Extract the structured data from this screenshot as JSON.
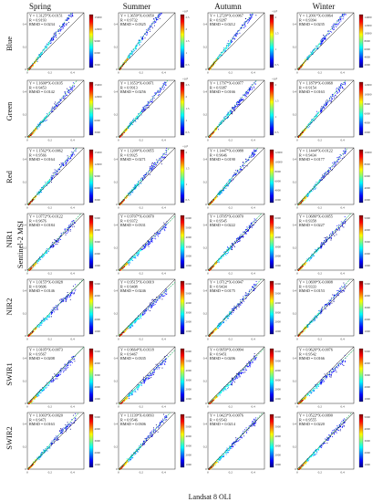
{
  "figure": {
    "seasons": [
      "Spring",
      "Summer",
      "Autumn",
      "Winter"
    ],
    "bands": [
      "Blue",
      "Green",
      "Red",
      "NIR1",
      "NIR2",
      "SWIR1",
      "SWIR2"
    ],
    "xlabel": "Landsat 8 OLI",
    "ylabel": "Sentinel-2 MSI"
  },
  "chart_data": {
    "type": "scatter",
    "axis_ticks": [
      "0",
      "0.2",
      "0.4"
    ],
    "xlim": [
      0,
      0.5
    ],
    "ylim": [
      0,
      0.5
    ],
    "density_colormap": [
      "#00007f",
      "#0000ff",
      "#007fff",
      "#00ffff",
      "#7fff7f",
      "#ffff00",
      "#ff7f00",
      "#ff0000",
      "#7f0000"
    ],
    "panels": [
      [
        {
          "equation": "Y = 1.3125*X-0.0151",
          "r": "R = 0.9193",
          "rmsd": "RMSD = 0.0234",
          "cbar_ticks": [
            "15000",
            "12000",
            "9000",
            "6000",
            "3000"
          ],
          "cbar_exp": ""
        },
        {
          "equation": "Y = 1.3659*X-0.0050",
          "r": "R = 0.9732",
          "rmsd": "RMSD = 0.0325",
          "cbar_ticks": [
            "2.5",
            "2",
            "1.5",
            "1",
            "0.5"
          ],
          "cbar_exp": "×10⁴"
        },
        {
          "equation": "Y = 1.2729*X-0.0067",
          "r": "R = 0.9287",
          "rmsd": "RMSD = 0.0212",
          "cbar_ticks": [
            "2",
            "1.5",
            "1",
            "0.5"
          ],
          "cbar_exp": "×10⁴"
        },
        {
          "equation": "Y = 1.2091*X-0.0064",
          "r": "R = 0.9394",
          "rmsd": "RMSD = 0.0235",
          "cbar_ticks": [
            "14000",
            "12000",
            "10000",
            "8000",
            "6000",
            "4000",
            "2000"
          ],
          "cbar_exp": ""
        }
      ],
      [
        {
          "equation": "Y = 1.1600*X-0.0105",
          "r": "R = 0.9453",
          "rmsd": "RMSD = 0.0142",
          "cbar_ticks": [
            "15000",
            "12000",
            "9000",
            "6000",
            "3000"
          ],
          "cbar_exp": ""
        },
        {
          "equation": "Y = 1.1653*X-0.0071",
          "r": "R = 0.9913",
          "rmsd": "RMSD = 0.0256",
          "cbar_ticks": [
            "2.5",
            "2",
            "1.5",
            "1",
            "0.5"
          ],
          "cbar_exp": "×10⁴"
        },
        {
          "equation": "Y = 1.1797*X-0.0077",
          "r": "R = 0.9387",
          "rmsd": "RMSD = 0.0166",
          "cbar_ticks": [
            "2",
            "1.5",
            "1",
            "0.5"
          ],
          "cbar_exp": "×10⁴"
        },
        {
          "equation": "Y = 1.1879*X-0.0068",
          "r": "R = 0.9154",
          "rmsd": "RMSD = 0.0163",
          "cbar_ticks": [
            "12000",
            "10000",
            "8000",
            "6000",
            "4000",
            "2000"
          ],
          "cbar_exp": ""
        }
      ],
      [
        {
          "equation": "Y = 1.1562*X-0.0062",
          "r": "R = 0.9566",
          "rmsd": "RMSD = 0.0164",
          "cbar_ticks": [
            "15000",
            "12000",
            "9000",
            "6000",
            "3000"
          ],
          "cbar_exp": ""
        },
        {
          "equation": "Y = 1.1209*X-0.0055",
          "r": "R = 0.9925",
          "rmsd": "RMSD = 0.0271",
          "cbar_ticks": [
            "2",
            "1.5",
            "1",
            "0.5"
          ],
          "cbar_exp": "×10⁴"
        },
        {
          "equation": "Y = 1.1447*X-0.0088",
          "r": "R = 0.9646",
          "rmsd": "RMSD = 0.0190",
          "cbar_ticks": [
            "12000",
            "10000",
            "8000",
            "6000",
            "4000",
            "2000"
          ],
          "cbar_exp": ""
        },
        {
          "equation": "Y = 1.1444*X-0.0122",
          "r": "R = 0.9434",
          "rmsd": "RMSD = 0.0177",
          "cbar_ticks": [
            "10000",
            "8000",
            "6000",
            "4000",
            "2000"
          ],
          "cbar_exp": ""
        }
      ],
      [
        {
          "equation": "Y = 1.0772*X-0.0122",
          "r": "R = 0.9676",
          "rmsd": "RMSD = 0.0184",
          "cbar_ticks": [
            "5000",
            "4000",
            "3000",
            "2000",
            "1000"
          ],
          "cbar_exp": ""
        },
        {
          "equation": "Y = 0.9707*X-0.0070",
          "r": "R = 0.9372",
          "rmsd": "RMSD = 0.0331",
          "cbar_ticks": [
            "6000",
            "5000",
            "4000",
            "3000",
            "2000",
            "1000"
          ],
          "cbar_exp": ""
        },
        {
          "equation": "Y = 1.0705*X-0.0070",
          "r": "R = 0.9545",
          "rmsd": "RMSD = 0.0222",
          "cbar_ticks": [
            "6000",
            "5000",
            "4000",
            "3000",
            "2000",
            "1000"
          ],
          "cbar_exp": ""
        },
        {
          "equation": "Y = 1.0686*X-0.0055",
          "r": "R = 0.9358",
          "rmsd": "RMSD = 0.0227",
          "cbar_ticks": [
            "5000",
            "4000",
            "3000",
            "2000",
            "1000"
          ],
          "cbar_exp": ""
        }
      ],
      [
        {
          "equation": "Y = 1.0155*X-0.0028",
          "r": "R = 0.9606",
          "rmsd": "RMSD = 0.0146",
          "cbar_ticks": [
            "5000",
            "4000",
            "3000",
            "2000",
            "1000"
          ],
          "cbar_exp": ""
        },
        {
          "equation": "Y = 0.9515*X-0.0019",
          "r": "R = 0.9408",
          "rmsd": "RMSD = 0.0246",
          "cbar_ticks": [
            "6000",
            "5000",
            "4000",
            "3000",
            "2000",
            "1000"
          ],
          "cbar_exp": ""
        },
        {
          "equation": "Y = 1.0712*X-0.0047",
          "r": "R = 0.9434",
          "rmsd": "RMSD = 0.0175",
          "cbar_ticks": [
            "6000",
            "5000",
            "4000",
            "3000",
            "2000",
            "1000"
          ],
          "cbar_exp": ""
        },
        {
          "equation": "Y = 1.0699*X-0.0008",
          "r": "R = 0.9333",
          "rmsd": "RMSD = 0.0153",
          "cbar_ticks": [
            "5000",
            "4000",
            "3000",
            "2000",
            "1000"
          ],
          "cbar_exp": ""
        }
      ],
      [
        {
          "equation": "Y = 1.0105*X-0.0073",
          "r": "R = 0.9567",
          "rmsd": "RMSD = 0.0208",
          "cbar_ticks": [
            "5000",
            "4000",
            "3000",
            "2000",
            "1000"
          ],
          "cbar_exp": ""
        },
        {
          "equation": "Y = 0.9664*X-0.0118",
          "r": "R = 0.9467",
          "rmsd": "RMSD = 0.0335",
          "cbar_ticks": [
            "6000",
            "5000",
            "4000",
            "3000",
            "2000",
            "1000"
          ],
          "cbar_exp": ""
        },
        {
          "equation": "Y = 0.9959*X-0.0094",
          "r": "R = 0.9451",
          "rmsd": "RMSD = 0.0206",
          "cbar_ticks": [
            "6000",
            "5000",
            "4000",
            "3000",
            "2000",
            "1000"
          ],
          "cbar_exp": ""
        },
        {
          "equation": "Y = 0.9626*X-0.0076",
          "r": "R = 0.9542",
          "rmsd": "RMSD = 0.0166",
          "cbar_ticks": [
            "5000",
            "4000",
            "3000",
            "2000",
            "1000"
          ],
          "cbar_exp": ""
        }
      ],
      [
        {
          "equation": "Y = 1.1003*X-0.0020",
          "r": "R = 0.9471",
          "rmsd": "RMSD = 0.0163",
          "cbar_ticks": [
            "5000",
            "4000",
            "3000",
            "2000",
            "1000"
          ],
          "cbar_exp": ""
        },
        {
          "equation": "Y = 1.1139*X-0.0093",
          "r": "R = 0.9546",
          "rmsd": "RMSD = 0.0306",
          "cbar_ticks": [
            "6000",
            "5000",
            "4000",
            "3000",
            "2000",
            "1000"
          ],
          "cbar_exp": ""
        },
        {
          "equation": "Y = 1.0423*X-0.0076",
          "r": "R = 0.9543",
          "rmsd": "RMSD = 0.0214",
          "cbar_ticks": [
            "6000",
            "5000",
            "4000",
            "3000",
            "2000",
            "1000"
          ],
          "cbar_exp": ""
        },
        {
          "equation": "Y = 1.0522*X-0.0090",
          "r": "R = 0.9555",
          "rmsd": "RMSD = 0.0220",
          "cbar_ticks": [
            "5000",
            "4000",
            "3000",
            "2000",
            "1000"
          ],
          "cbar_exp": ""
        }
      ]
    ]
  }
}
